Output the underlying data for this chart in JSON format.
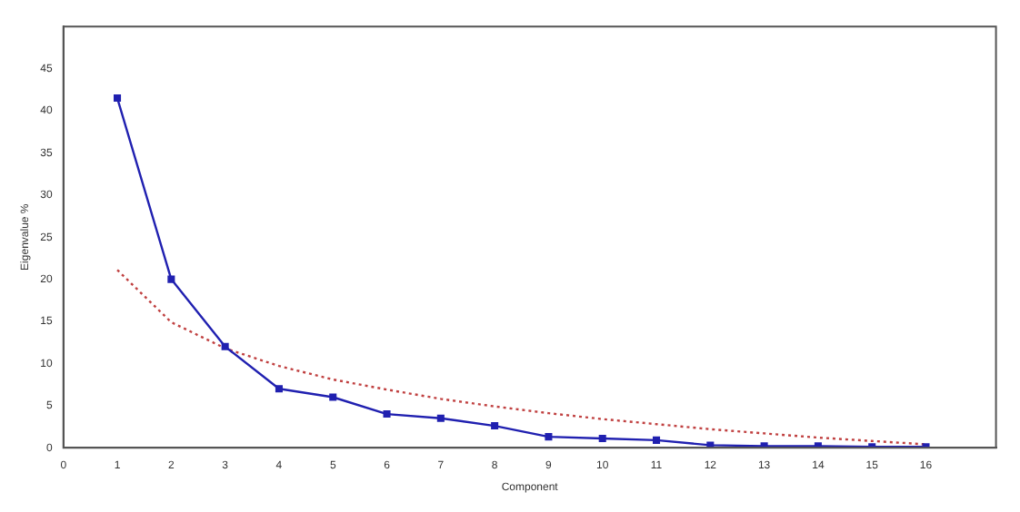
{
  "chart_data": {
    "type": "line",
    "xlabel": "Component",
    "ylabel": "Eigenvalue %",
    "xlim": [
      0,
      17.3
    ],
    "ylim": [
      0,
      50
    ],
    "xticks": [
      0,
      1,
      2,
      3,
      4,
      5,
      6,
      7,
      8,
      9,
      10,
      11,
      12,
      13,
      14,
      15,
      16
    ],
    "yticks": [
      0,
      5,
      10,
      15,
      20,
      25,
      30,
      35,
      40,
      45
    ],
    "grid": false,
    "legend": false,
    "x": [
      1,
      2,
      3,
      4,
      5,
      6,
      7,
      8,
      9,
      10,
      11,
      12,
      13,
      14,
      15,
      16
    ],
    "series": [
      {
        "color": "#2020b0",
        "marker": "square",
        "line_style": "solid",
        "values": [
          41.5,
          20,
          12,
          7,
          6,
          4,
          3.5,
          2.6,
          1.3,
          1.1,
          0.9,
          0.3,
          0.2,
          0.2,
          0.1,
          0.1
        ]
      },
      {
        "color": "#c04040",
        "marker": "none",
        "line_style": "dotted",
        "values": [
          21.1,
          14.9,
          11.8,
          9.7,
          8.1,
          6.9,
          5.8,
          4.9,
          4.1,
          3.4,
          2.8,
          2.2,
          1.7,
          1.2,
          0.8,
          0.4
        ]
      }
    ]
  }
}
